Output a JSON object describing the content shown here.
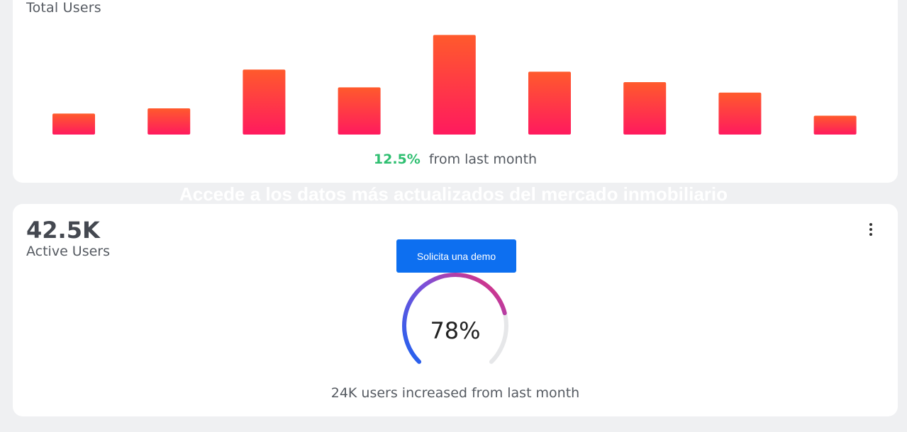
{
  "total_users_card": {
    "title": "Total Users",
    "change_percent": "12.5%",
    "change_text": "from last month",
    "bar_gradient": {
      "top": "#ff5a2c",
      "bottom": "#ff1a5e"
    },
    "change_color": "#2fbf71"
  },
  "banner": {
    "heading": "Accede a los datos más actualizados del mercado inmobiliario",
    "demo_button": "Solicita una demo"
  },
  "active_users_card": {
    "value": "42.5K",
    "label": "Active Users",
    "gauge_percent": "78%",
    "gauge_fraction": 0.78,
    "footer_text": "24K users increased from last month",
    "more_icon": "more-vertical-icon"
  },
  "chart_data": {
    "type": "bar",
    "categories": [
      "",
      "",
      "",
      "",
      "",
      "",
      "",
      "",
      ""
    ],
    "values": [
      20,
      25,
      62,
      45,
      95,
      60,
      50,
      40,
      18
    ],
    "title": "Total Users",
    "xlabel": "",
    "ylabel": "",
    "ylim": [
      0,
      100
    ],
    "grid": false
  }
}
